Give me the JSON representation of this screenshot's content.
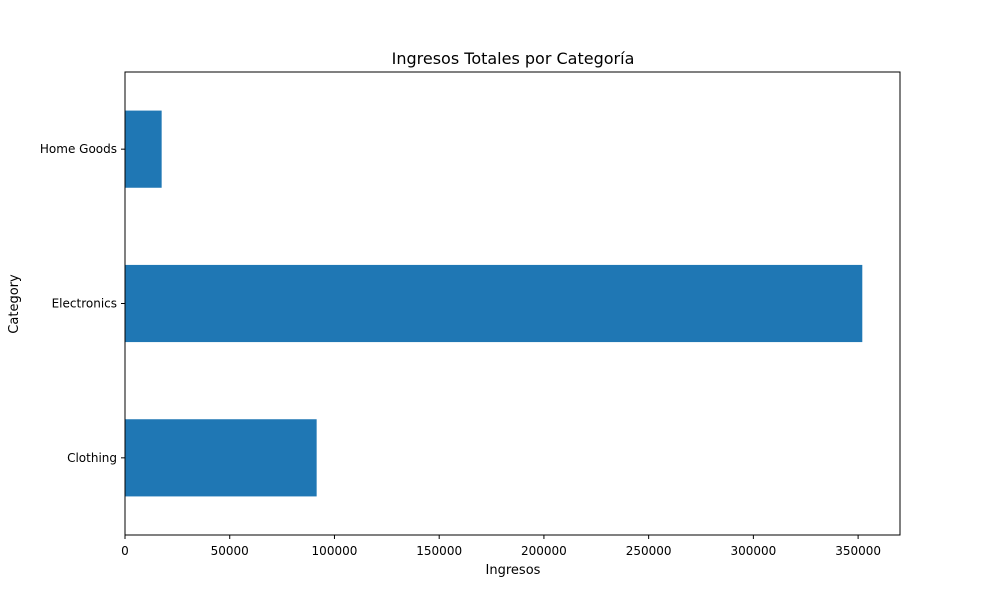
{
  "chart_data": {
    "type": "bar",
    "orientation": "horizontal",
    "title": "Ingresos Totales por Categoría",
    "xlabel": "Ingresos",
    "ylabel": "Category",
    "categories": [
      "Clothing",
      "Electronics",
      "Home Goods"
    ],
    "values": [
      91500,
      352000,
      17500
    ],
    "xlim": [
      0,
      370000
    ],
    "xticks": [
      0,
      50000,
      100000,
      150000,
      200000,
      250000,
      300000,
      350000
    ],
    "xtick_labels": [
      "0",
      "50000",
      "100000",
      "150000",
      "200000",
      "250000",
      "300000",
      "350000"
    ],
    "bar_color": "#1f77b4",
    "grid": false,
    "legend": false
  }
}
